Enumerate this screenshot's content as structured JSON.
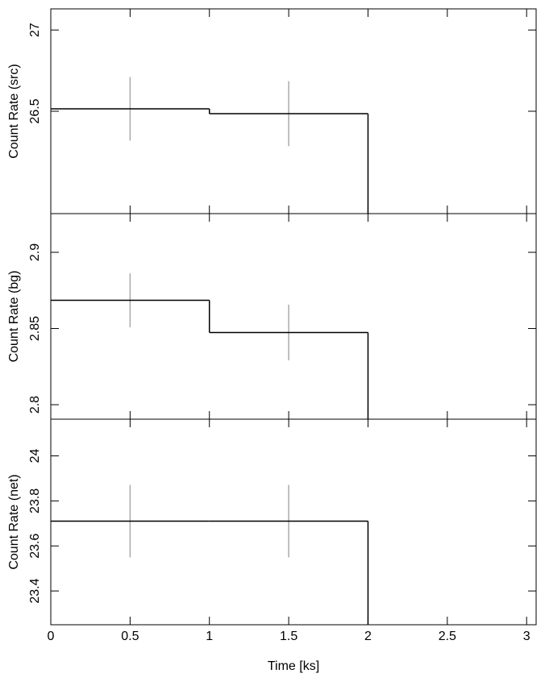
{
  "chart_data": [
    {
      "type": "histogram",
      "ylabel": "Count Rate (src)",
      "bins": [
        0,
        1,
        2
      ],
      "values": [
        26.515,
        26.485
      ],
      "errors": [
        0.196,
        0.2
      ],
      "ylim": [
        25.87,
        27.13
      ],
      "yticks": [
        26.5,
        27
      ],
      "color": "#000000",
      "error_color": "#aaaaaa"
    },
    {
      "type": "histogram",
      "ylabel": "Count Rate (bg)",
      "bins": [
        0,
        1,
        2
      ],
      "values": [
        2.8685,
        2.8474
      ],
      "errors": [
        0.0177,
        0.0183
      ],
      "ylim": [
        2.7905,
        2.9254
      ],
      "yticks": [
        2.8,
        2.85,
        2.9
      ],
      "color": "#000000",
      "error_color": "#aaaaaa"
    },
    {
      "type": "histogram",
      "ylabel": "Count Rate (net)",
      "xlabel": "Time [ks]",
      "bins": [
        0,
        1,
        2
      ],
      "values": [
        23.71,
        23.71
      ],
      "errors": [
        0.161,
        0.161
      ],
      "ylim": [
        23.25,
        24.163
      ],
      "yticks": [
        23.4,
        23.6,
        23.8,
        24
      ],
      "xlim": [
        0,
        3.06
      ],
      "xticks": [
        0,
        0.5,
        1,
        1.5,
        2,
        2.5,
        3
      ],
      "color": "#000000",
      "error_color": "#aaaaaa"
    }
  ]
}
